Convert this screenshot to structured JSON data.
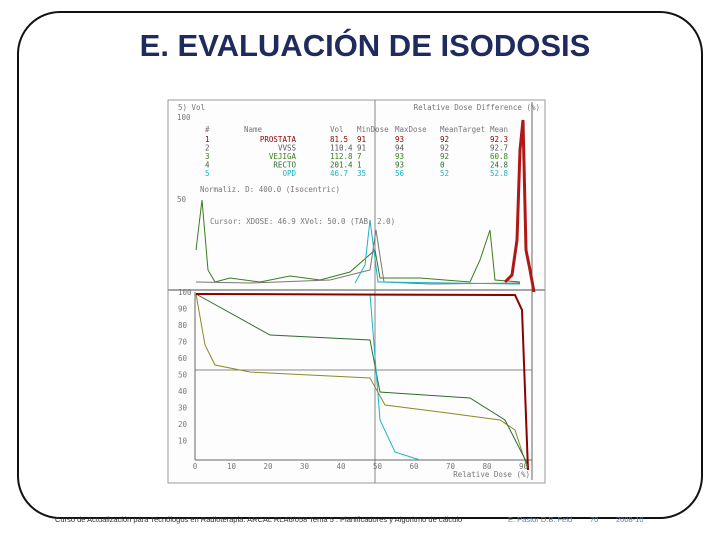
{
  "slide": {
    "title": "E. EVALUACIÓN DE ISODOSIS",
    "footer": {
      "course": "Curso de Actualización para Tecnólogos en Radioterapia. ARCAL RLA6/058 Tema 5 : Planificadores y Algoritmo de cálculo",
      "authors": "E. Pastor D.B. Feld",
      "page": "70",
      "date": "2008-10"
    }
  },
  "screenshot": {
    "header_left": "5) Vol",
    "header_right": "Relative Dose Difference (%)",
    "table": {
      "headers": [
        "#",
        "Name",
        "Vol",
        "MinDose",
        "MaxDose",
        "MeanTarget",
        "Mean"
      ],
      "rows": [
        [
          "1",
          "PROSTATA",
          "81.5",
          "91",
          "93",
          "92",
          "92.3"
        ],
        [
          "2",
          "VVSS",
          "110.4",
          "91",
          "94",
          "92",
          "92.7"
        ],
        [
          "3",
          "VEJIGA",
          "112.8",
          "7",
          "93",
          "92",
          "60.8"
        ],
        [
          "4",
          "RECTO",
          "201.4",
          "1",
          "93",
          "0",
          "24.8"
        ],
        [
          "5",
          "OPD",
          "46.7",
          "35",
          "56",
          "52",
          "52.8"
        ]
      ]
    },
    "normalization": "Normaliz. D: 400.0 (Isocentric)",
    "cursor": "Cursor: XDOSE: 46.9 XVol: 50.0 (TAB: 2.0)",
    "upper_y_labels": [
      "100",
      "50"
    ],
    "y_labels": [
      "100",
      "90",
      "80",
      "70",
      "60",
      "50",
      "40",
      "30",
      "20",
      "10"
    ],
    "x_labels": [
      "0",
      "10",
      "20",
      "30",
      "40",
      "50",
      "60",
      "70",
      "80",
      "90"
    ],
    "x_axis_label": "Relative Dose (%)"
  }
}
